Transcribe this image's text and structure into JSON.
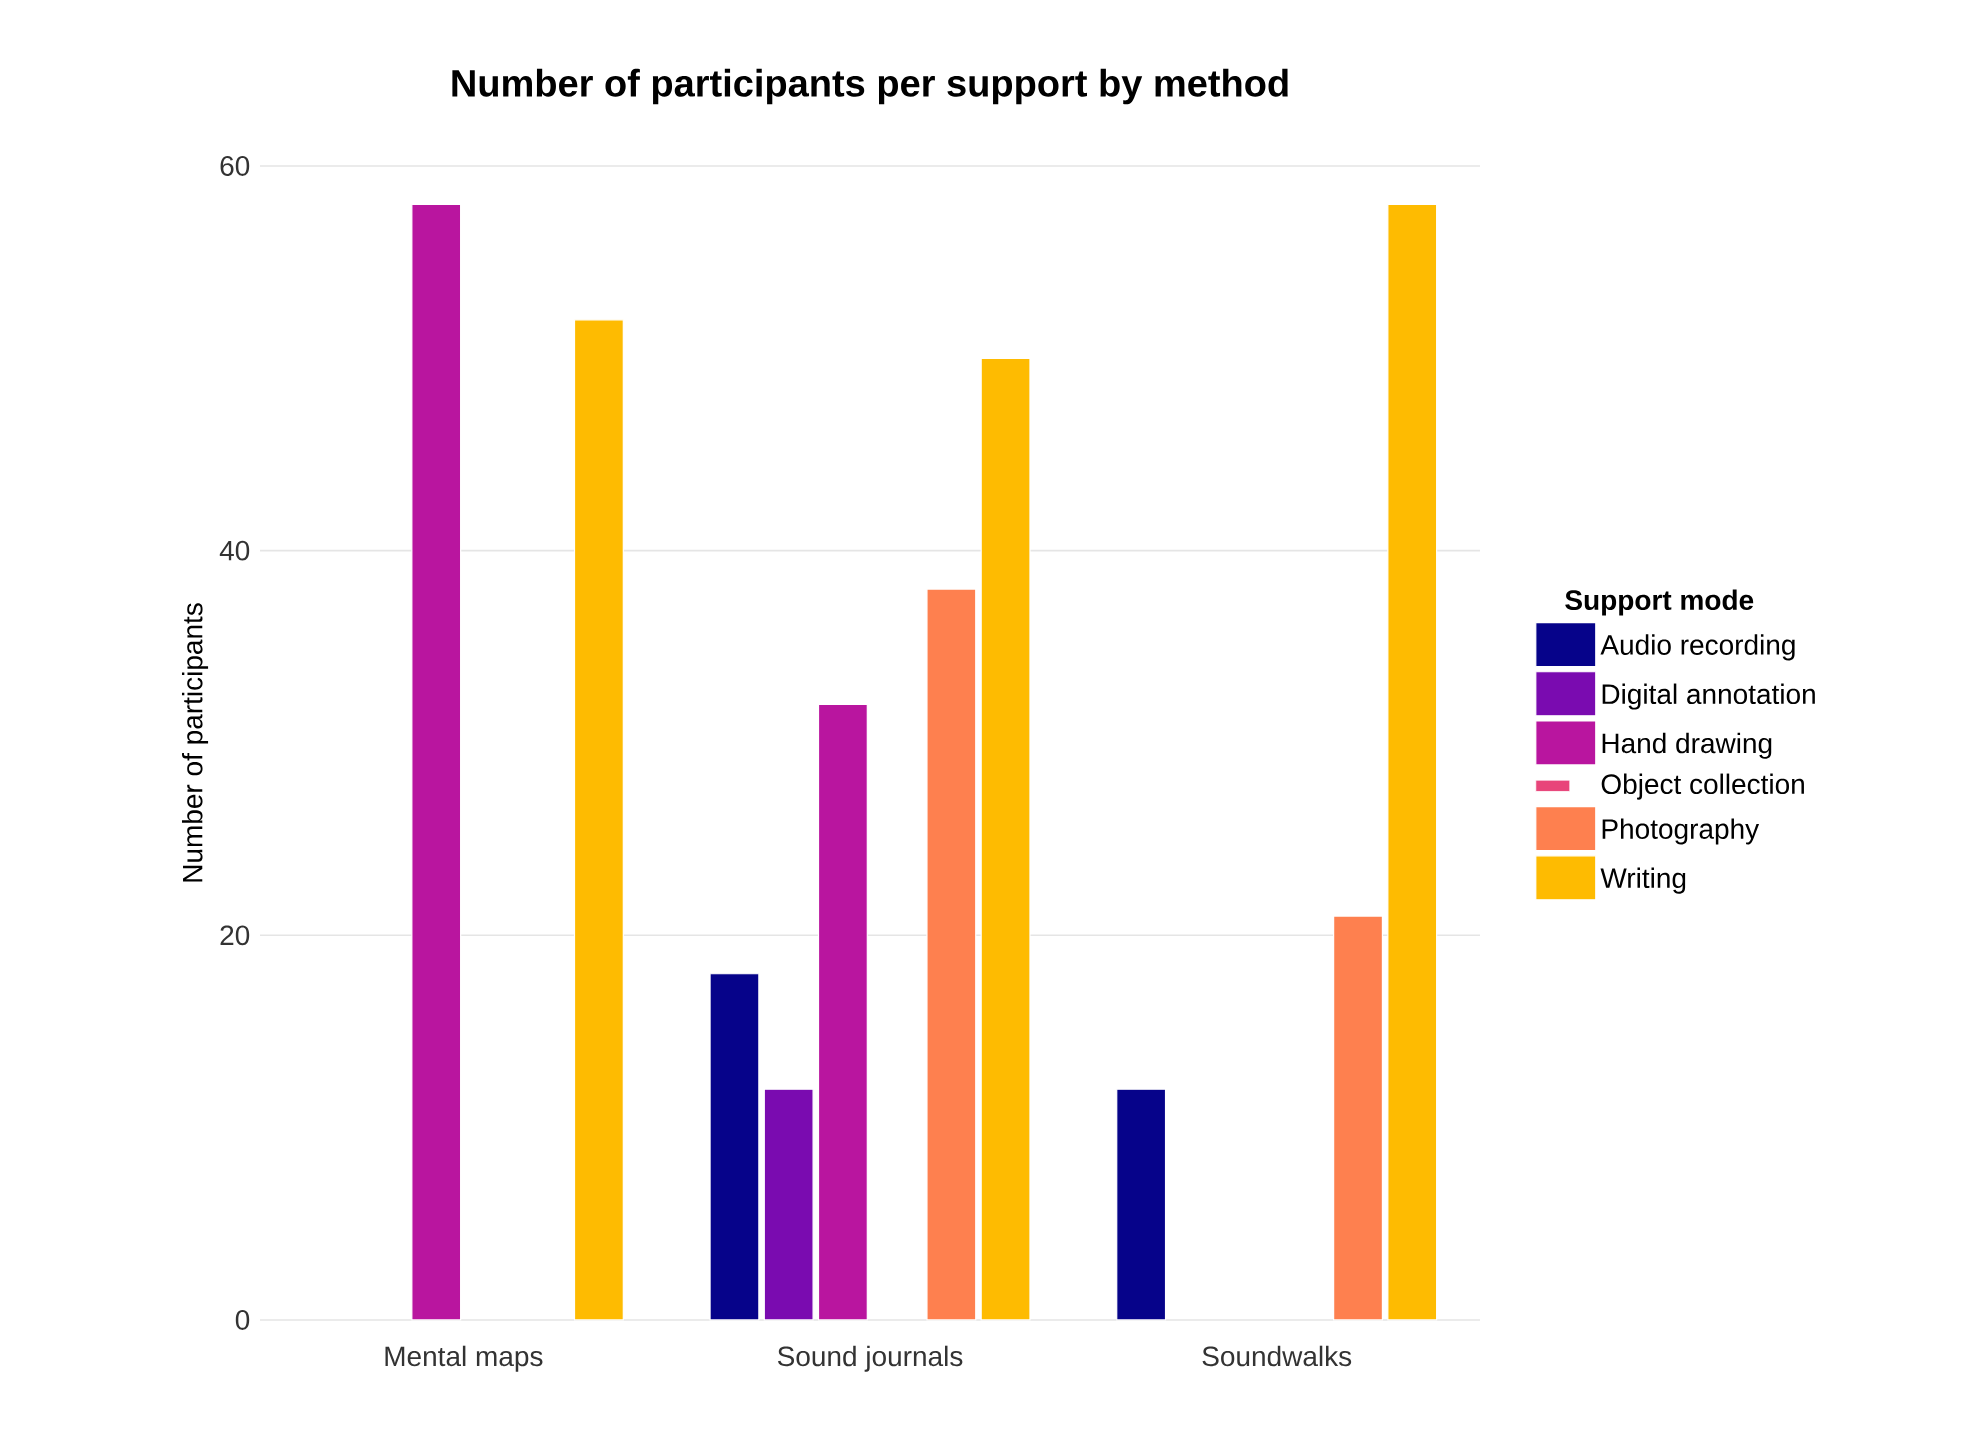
{
  "chart_data": {
    "type": "bar",
    "title": "Number of participants per support by method",
    "ylabel": "Number of participants",
    "legend_title": "Support mode",
    "categories": [
      "Mental maps",
      "Sound journals",
      "Soundwalks"
    ],
    "series": [
      {
        "name": "Audio recording",
        "color": "#06038a",
        "values": [
          null,
          18,
          12
        ]
      },
      {
        "name": "Digital annotation",
        "color": "#7a0bb0",
        "values": [
          null,
          12,
          null
        ]
      },
      {
        "name": "Hand drawing",
        "color": "#b9159f",
        "values": [
          58,
          32,
          null
        ]
      },
      {
        "name": "Object collection",
        "color": "#e8457a",
        "values": [
          null,
          null,
          null
        ]
      },
      {
        "name": "Photography",
        "color": "#fe804f",
        "values": [
          null,
          38,
          21
        ]
      },
      {
        "name": "Writing",
        "color": "#febb01",
        "values": [
          52,
          50,
          58
        ]
      }
    ],
    "ylim": [
      0,
      60
    ],
    "yticks": [
      0,
      20,
      40,
      60
    ],
    "grid": "y",
    "legend": "right"
  }
}
